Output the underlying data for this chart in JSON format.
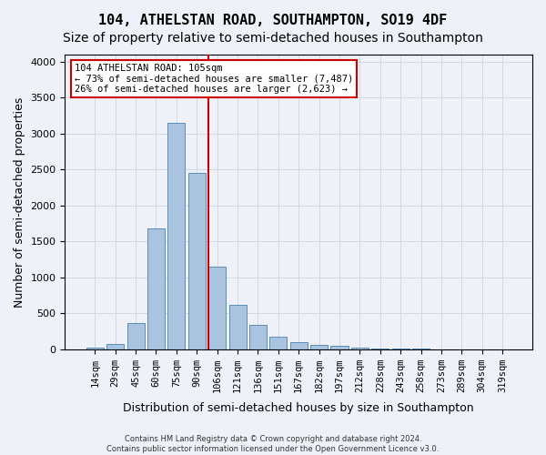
{
  "title": "104, ATHELSTAN ROAD, SOUTHAMPTON, SO19 4DF",
  "subtitle": "Size of property relative to semi-detached houses in Southampton",
  "xlabel": "Distribution of semi-detached houses by size in Southampton",
  "ylabel": "Number of semi-detached properties",
  "footer_line1": "Contains HM Land Registry data © Crown copyright and database right 2024.",
  "footer_line2": "Contains public sector information licensed under the Open Government Licence v3.0.",
  "bar_labels": [
    "14sqm",
    "29sqm",
    "45sqm",
    "60sqm",
    "75sqm",
    "90sqm",
    "106sqm",
    "121sqm",
    "136sqm",
    "151sqm",
    "167sqm",
    "182sqm",
    "197sqm",
    "212sqm",
    "228sqm",
    "243sqm",
    "258sqm",
    "273sqm",
    "289sqm",
    "304sqm",
    "319sqm"
  ],
  "bar_values": [
    25,
    75,
    360,
    1680,
    3150,
    2450,
    1150,
    620,
    340,
    170,
    100,
    65,
    45,
    20,
    5,
    5,
    5,
    2,
    2,
    2,
    2
  ],
  "bar_color": "#aac4e0",
  "bar_edge_color": "#5b8db8",
  "property_line_index": 6,
  "annotation_title": "104 ATHELSTAN ROAD: 105sqm",
  "annotation_line2": "← 73% of semi-detached houses are smaller (7,487)",
  "annotation_line3": "26% of semi-detached houses are larger (2,623) →",
  "annotation_box_color": "#ffffff",
  "annotation_box_edge": "#cc0000",
  "vline_color": "#cc0000",
  "ylim": [
    0,
    4100
  ],
  "yticks": [
    0,
    500,
    1000,
    1500,
    2000,
    2500,
    3000,
    3500,
    4000
  ],
  "grid_color": "#d0d8e8",
  "bg_color": "#eef2f8",
  "title_fontsize": 11,
  "subtitle_fontsize": 10,
  "xlabel_fontsize": 9,
  "ylabel_fontsize": 9
}
